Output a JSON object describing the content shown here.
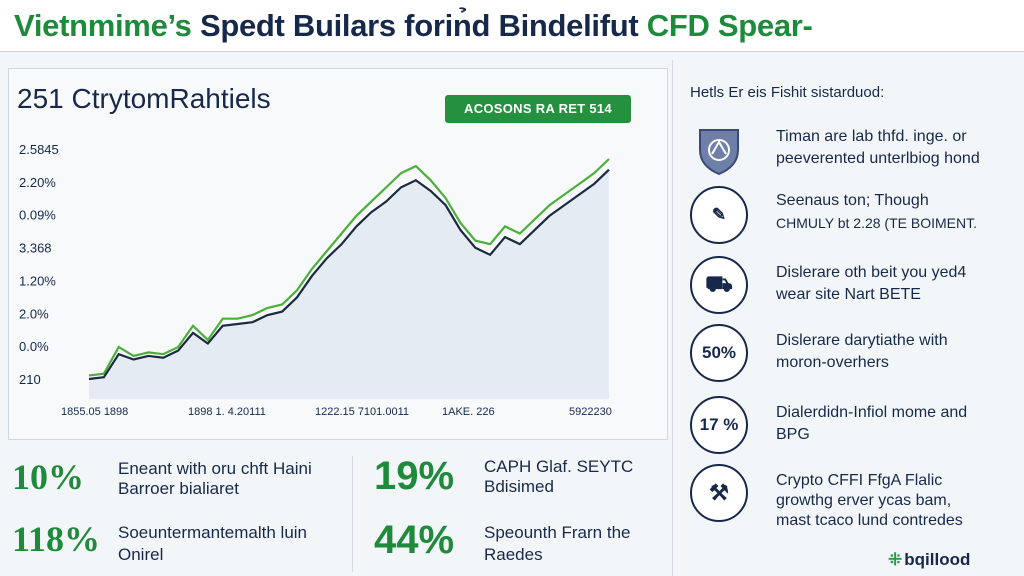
{
  "header": {
    "title_part1": "Vietnmime’s",
    "title_part2": "Spedt Builars forin̉d Bindelifut",
    "title_part3": "CFD Spear-"
  },
  "chart_panel": {
    "title": "251 CtrytomRahtiels",
    "badge": "ACOSONS RA RET 514"
  },
  "chart_data": {
    "type": "line",
    "title": "251 CtrytomRahtiels",
    "y_tick_labels": [
      "2.5845",
      "2.20%",
      "0.09%",
      "3.368",
      "1.20%",
      "2.0%",
      "0.0%",
      "210"
    ],
    "x_tick_labels": [
      "1855.05 1898",
      "1898 1. 4.20111",
      "1222.15 7101.0011",
      "1AKE. 226",
      "5922230"
    ],
    "grid": true,
    "legend": "none",
    "series": [
      {
        "color": "#1b2a40",
        "values": [
          0.2,
          0.25,
          0.9,
          0.75,
          0.85,
          0.8,
          1.0,
          1.5,
          1.2,
          1.7,
          1.75,
          1.8,
          2.0,
          2.1,
          2.5,
          3.1,
          3.6,
          4.0,
          4.5,
          4.9,
          5.2,
          5.6,
          5.8,
          5.5,
          5.1,
          4.4,
          3.9,
          3.7,
          4.2,
          4.0,
          4.4,
          4.8,
          5.1,
          5.4,
          5.7,
          6.1
        ]
      },
      {
        "color": "#4caf3a",
        "values": [
          0.3,
          0.35,
          1.1,
          0.85,
          0.95,
          0.9,
          1.1,
          1.7,
          1.3,
          1.9,
          1.9,
          2.0,
          2.2,
          2.3,
          2.7,
          3.3,
          3.8,
          4.3,
          4.8,
          5.2,
          5.6,
          6.0,
          6.2,
          5.8,
          5.3,
          4.6,
          4.1,
          4.0,
          4.5,
          4.3,
          4.7,
          5.1,
          5.4,
          5.7,
          6.0,
          6.4
        ]
      }
    ]
  },
  "stats": [
    {
      "value": "10%",
      "line1": "Eneant with oru chft Haini",
      "line2": "Barroer bialiaret"
    },
    {
      "value": "19%",
      "line1": "CAPH Glaf. SEYTC",
      "line2": "Bdisimed"
    },
    {
      "value": "118%",
      "line1": "Soeuntermantemalth luin",
      "line2": "Onirel"
    },
    {
      "value": "44%",
      "line1": "Speounth Frarn the",
      "line2": "Raedes"
    }
  ],
  "sidebar": {
    "title": "Hetls Er eis Fishit sistarduod:",
    "items": [
      {
        "icon": "shield-icon",
        "glyph": "",
        "line1": "Timan are lab thfd. inge. or",
        "line2": "peeverented unterlbiog hond"
      },
      {
        "icon": "chart-pencil-icon",
        "glyph": "✎",
        "line1": "Seenaus ton; Though",
        "line2": "CHMULY bt 2.28 (TE BOIMENT."
      },
      {
        "icon": "truck-icon",
        "glyph": "⛟",
        "line1": "Dislerare oth beit you yed4",
        "line2": "wear site Nart BETE"
      },
      {
        "icon": "percent-badge-icon",
        "glyph": "50%",
        "line1": "Dislerare darytiathe with",
        "line2": "moron-overhers"
      },
      {
        "icon": "percent-badge-icon",
        "glyph": "17 %",
        "line1": "Dialerdidn-Infiol mome and",
        "line2": "BPG"
      },
      {
        "icon": "handshake-icon",
        "glyph": "⚒",
        "line1": "Crypto CFFI FfgA Flalic",
        "line2": "growthg erver ycas bam,",
        "line3": "mast tcaco lund contredes"
      }
    ]
  },
  "logo": {
    "text": "bqillood"
  }
}
